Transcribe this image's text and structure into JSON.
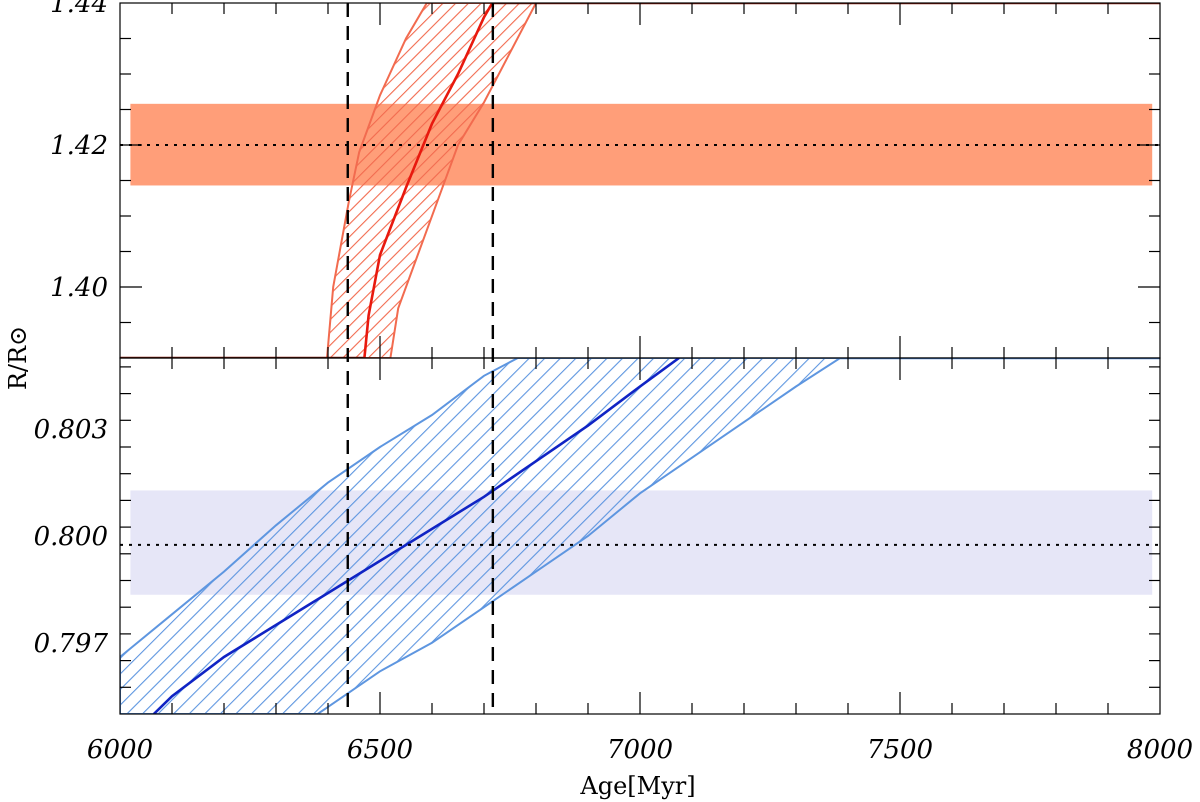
{
  "chart_data": [
    {
      "type": "line",
      "panel": "top",
      "title": "",
      "xlabel": "",
      "ylabel": "",
      "xlim": [
        6000,
        8000
      ],
      "ylim": [
        1.39,
        1.44
      ],
      "yticks": [
        1.4,
        1.42,
        1.44
      ],
      "ytick_labels": [
        "1.40",
        "1.42",
        "1.44"
      ],
      "grid": false,
      "colors": {
        "band": "#ff9e79",
        "hatch": "#f26b4f",
        "line": "#e8190e",
        "flat": "#8b1a0a",
        "ref": "#000000"
      },
      "observed": {
        "value": 1.42,
        "low": 1.4143,
        "high": 1.4258,
        "x_range": [
          6020,
          7985
        ]
      },
      "series": [
        {
          "x": [
            6470,
            6478,
            6500,
            6550,
            6600,
            6650,
            6700,
            6716
          ],
          "y": [
            1.39,
            1.396,
            1.4045,
            1.414,
            1.423,
            1.43,
            1.438,
            1.44
          ]
        }
      ],
      "uncertainty_band": {
        "x_left": [
          6398,
          6410,
          6440,
          6460,
          6500,
          6550,
          6590
        ],
        "y_left": [
          1.39,
          1.4,
          1.412,
          1.419,
          1.427,
          1.435,
          1.44
        ],
        "x_right": [
          6520,
          6535,
          6570,
          6610,
          6650,
          6700,
          6750,
          6800
        ],
        "y_right": [
          1.39,
          1.397,
          1.404,
          1.412,
          1.42,
          1.426,
          1.433,
          1.44
        ]
      },
      "flat_levels": [
        {
          "x": [
            6000,
            6470
          ],
          "y": 1.39
        },
        {
          "x": [
            6716,
            8000
          ],
          "y": 1.44
        }
      ]
    },
    {
      "type": "line",
      "panel": "bottom",
      "title": "",
      "xlabel": "Age[Myr]",
      "ylabel": "R/R⊙",
      "xlim": [
        6000,
        8000
      ],
      "ylim": [
        0.795,
        0.805
      ],
      "xticks": [
        6000,
        6500,
        7000,
        7500,
        8000
      ],
      "xtick_labels": [
        "6000",
        "6500",
        "7000",
        "7500",
        "8000"
      ],
      "yticks": [
        0.797,
        0.8,
        0.803
      ],
      "ytick_labels": [
        "0.797",
        "0.800",
        "0.803"
      ],
      "grid": false,
      "colors": {
        "band": "#e6e6f7",
        "hatch": "#5e96e0",
        "line": "#1024c4",
        "flat": "#4a86d8",
        "ref": "#000000"
      },
      "observed": {
        "value": 0.79975,
        "low": 0.79835,
        "high": 0.80128,
        "x_range": [
          6020,
          7985
        ]
      },
      "series": [
        {
          "x": [
            6065,
            6100,
            6200,
            6300,
            6400,
            6500,
            6600,
            6700,
            6800,
            6900,
            7000,
            7075
          ],
          "y": [
            0.795,
            0.7955,
            0.7966,
            0.7975,
            0.7984,
            0.7993,
            0.8002,
            0.8011,
            0.8021,
            0.8031,
            0.8042,
            0.805
          ]
        }
      ],
      "uncertainty_band": {
        "x_upper": [
          6000,
          6100,
          6200,
          6300,
          6400,
          6500,
          6600,
          6700,
          6765
        ],
        "y_upper": [
          0.7966,
          0.7978,
          0.799,
          0.8003,
          0.8015,
          0.8025,
          0.8034,
          0.8045,
          0.805
        ],
        "x_lower": [
          6380,
          6400,
          6500,
          6600,
          6700,
          6800,
          6900,
          7000,
          7100,
          7200,
          7300,
          7385
        ],
        "y_lower": [
          0.795,
          0.7952,
          0.7962,
          0.797,
          0.798,
          0.799,
          0.8,
          0.8012,
          0.8022,
          0.8032,
          0.8042,
          0.805
        ]
      },
      "flat_levels": [
        {
          "x": [
            7385,
            8000
          ],
          "y": 0.805
        }
      ]
    }
  ],
  "shared": {
    "vlines": [
      6438,
      6717
    ]
  }
}
